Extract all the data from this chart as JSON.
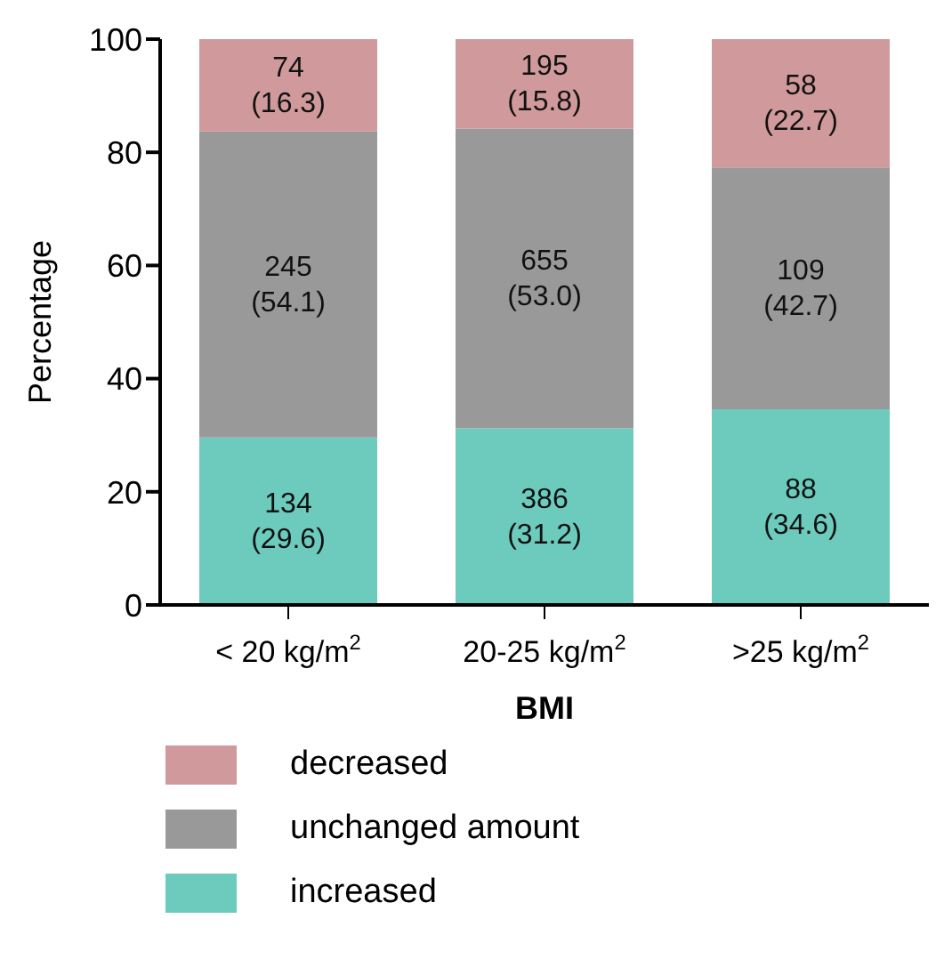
{
  "chart_data": {
    "type": "bar",
    "stacked": true,
    "xlabel": "BMI",
    "ylabel": "Percentage",
    "categories": [
      "< 20 kg/m$^{2}$",
      "20-25 kg/m$^{2}$",
      ">25 kg/m$^{2}$"
    ],
    "series": [
      {
        "name": "increased",
        "color": "#6dcbbd",
        "values": [
          29.6,
          31.2,
          34.6
        ],
        "value_labels": [
          "134 (29.6)",
          "386 (31.2)",
          "88 (34.6)"
        ]
      },
      {
        "name": "unchanged amount",
        "color": "#999999",
        "values": [
          54.1,
          53.0,
          42.7
        ],
        "value_labels": [
          "245 (54.1)",
          "655 (53.0)",
          "109 (42.7)"
        ]
      },
      {
        "name": "decreased",
        "color": "#d09a9c",
        "values": [
          16.3,
          15.8,
          22.7
        ],
        "value_labels": [
          "74 (16.3)",
          "195 (15.8)",
          "58 (22.7)"
        ]
      }
    ],
    "ylim": [
      0,
      100
    ],
    "yticks": [
      0,
      20,
      40,
      60,
      80,
      100
    ],
    "legend": "bottom"
  }
}
